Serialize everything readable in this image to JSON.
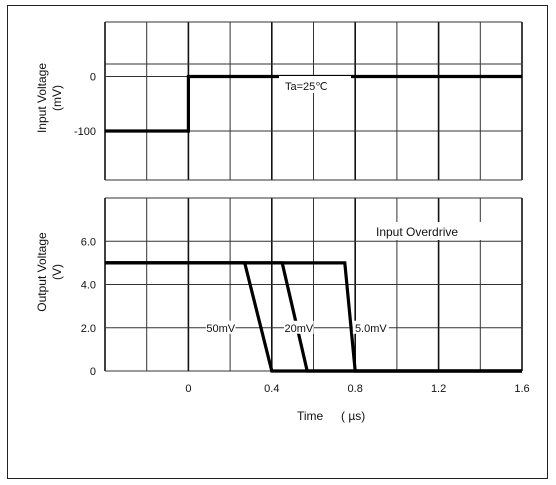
{
  "chart_data": [
    {
      "type": "line",
      "ylabel": "Input Voltage",
      "yunit": "(mV)",
      "yticks": [
        "0",
        "-100"
      ],
      "annotation": "Ta=25℃",
      "xlim": [
        -0.4,
        1.6
      ],
      "ylim": [
        -190,
        100
      ],
      "series": [
        {
          "x": [
            -0.4,
            0,
            0,
            1.6
          ],
          "y": [
            -100,
            -100,
            0,
            0
          ]
        }
      ]
    },
    {
      "type": "line",
      "ylabel": "Output Voltage",
      "yunit": "(V)",
      "yticks": [
        "6.0",
        "4.0",
        "2.0",
        "0"
      ],
      "xticks": [
        "0",
        "0.4",
        "0.8",
        "1.2",
        "1.6"
      ],
      "xlabel": "Time",
      "xunit": "( µs)",
      "legend_title": "Input Overdrive",
      "xlim": [
        -0.4,
        1.6
      ],
      "ylim": [
        0,
        8
      ],
      "series": [
        {
          "name": "5.0mV",
          "x": [
            -0.4,
            0.75,
            0.8,
            1.6
          ],
          "y": [
            5,
            5,
            0,
            0
          ]
        },
        {
          "name": "20mV",
          "x": [
            -0.4,
            0.45,
            0.57,
            1.6
          ],
          "y": [
            5,
            5,
            0,
            0
          ]
        },
        {
          "name": "50mV",
          "x": [
            -0.4,
            0.27,
            0.4,
            1.6
          ],
          "y": [
            5,
            5,
            0,
            0
          ]
        }
      ]
    }
  ]
}
